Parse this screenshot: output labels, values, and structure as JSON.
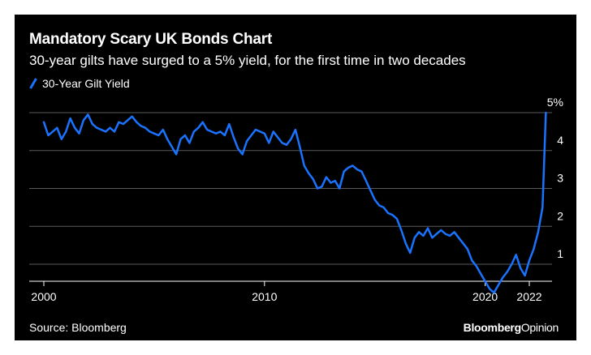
{
  "header": {
    "title": "Mandatory Scary UK Bonds Chart",
    "subtitle": "30-year gilts have surged to a 5% yield, for the first time in two decades"
  },
  "footer": {
    "source": "Source: Bloomberg",
    "brand_bold": "Bloomberg",
    "brand_regular": "Opinion"
  },
  "colors": {
    "background": "#000000",
    "line": "#1a73ff",
    "grid": "#5a5a5a",
    "text": "#ffffff"
  },
  "chart_data": {
    "type": "line",
    "title": "Mandatory Scary UK Bonds Chart",
    "subtitle": "30-year gilts have surged to a 5% yield, for the first time in two decades",
    "xlabel": "",
    "ylabel": "",
    "xlim": [
      2000,
      2022.9
    ],
    "ylim": [
      0,
      5
    ],
    "grid": true,
    "legend_position": "top-left",
    "x_ticks": [
      {
        "value": 2000,
        "label": "2000"
      },
      {
        "value": 2010,
        "label": "2010"
      },
      {
        "value": 2020,
        "label": "2020"
      },
      {
        "value": 2022,
        "label": "2022"
      }
    ],
    "y_ticks": [
      {
        "value": 5,
        "label": "5%"
      },
      {
        "value": 4,
        "label": "4"
      },
      {
        "value": 3,
        "label": "3"
      },
      {
        "value": 2,
        "label": "2"
      },
      {
        "value": 1,
        "label": "1"
      }
    ],
    "series": [
      {
        "name": "30-Year Gilt Yield",
        "x": [
          2000.0,
          2000.2,
          2000.4,
          2000.6,
          2000.8,
          2001.0,
          2001.2,
          2001.4,
          2001.6,
          2001.8,
          2002.0,
          2002.2,
          2002.4,
          2002.6,
          2002.8,
          2003.0,
          2003.2,
          2003.4,
          2003.6,
          2003.8,
          2004.0,
          2004.2,
          2004.4,
          2004.6,
          2004.8,
          2005.0,
          2005.2,
          2005.4,
          2005.6,
          2005.8,
          2006.0,
          2006.2,
          2006.4,
          2006.6,
          2006.8,
          2007.0,
          2007.2,
          2007.4,
          2007.6,
          2007.8,
          2008.0,
          2008.2,
          2008.4,
          2008.6,
          2008.8,
          2009.0,
          2009.2,
          2009.4,
          2009.6,
          2009.8,
          2010.0,
          2010.2,
          2010.4,
          2010.6,
          2010.8,
          2011.0,
          2011.2,
          2011.4,
          2011.6,
          2011.8,
          2012.0,
          2012.2,
          2012.4,
          2012.6,
          2012.8,
          2013.0,
          2013.2,
          2013.4,
          2013.6,
          2013.8,
          2014.0,
          2014.2,
          2014.4,
          2014.6,
          2014.8,
          2015.0,
          2015.2,
          2015.4,
          2015.6,
          2015.8,
          2016.0,
          2016.2,
          2016.4,
          2016.6,
          2016.8,
          2017.0,
          2017.2,
          2017.4,
          2017.6,
          2017.8,
          2018.0,
          2018.2,
          2018.4,
          2018.6,
          2018.8,
          2019.0,
          2019.2,
          2019.4,
          2019.6,
          2019.8,
          2020.0,
          2020.2,
          2020.4,
          2020.6,
          2020.8,
          2021.0,
          2021.2,
          2021.4,
          2021.6,
          2021.8,
          2022.0,
          2022.2,
          2022.4,
          2022.6,
          2022.75
        ],
        "values": [
          4.75,
          4.4,
          4.5,
          4.6,
          4.3,
          4.5,
          4.85,
          4.6,
          4.45,
          4.8,
          4.95,
          4.7,
          4.6,
          4.55,
          4.5,
          4.6,
          4.5,
          4.75,
          4.7,
          4.8,
          4.9,
          4.75,
          4.65,
          4.6,
          4.5,
          4.45,
          4.4,
          4.55,
          4.3,
          4.1,
          3.9,
          4.3,
          4.4,
          4.2,
          4.5,
          4.6,
          4.75,
          4.55,
          4.5,
          4.45,
          4.5,
          4.4,
          4.7,
          4.35,
          4.05,
          3.9,
          4.25,
          4.4,
          4.55,
          4.5,
          4.45,
          4.2,
          4.5,
          4.35,
          4.2,
          4.15,
          4.3,
          4.55,
          4.1,
          3.6,
          3.4,
          3.25,
          3.0,
          3.05,
          3.3,
          3.15,
          3.2,
          3.0,
          3.45,
          3.55,
          3.6,
          3.5,
          3.45,
          3.2,
          2.95,
          2.7,
          2.55,
          2.5,
          2.35,
          2.3,
          2.2,
          1.9,
          1.55,
          1.3,
          1.7,
          1.85,
          1.75,
          1.95,
          1.7,
          1.8,
          1.9,
          1.8,
          1.75,
          1.85,
          1.7,
          1.55,
          1.4,
          1.1,
          0.95,
          0.75,
          0.55,
          0.35,
          0.25,
          0.45,
          0.65,
          0.8,
          1.0,
          1.25,
          0.9,
          0.7,
          1.1,
          1.4,
          1.85,
          2.5,
          5.0
        ]
      }
    ]
  }
}
